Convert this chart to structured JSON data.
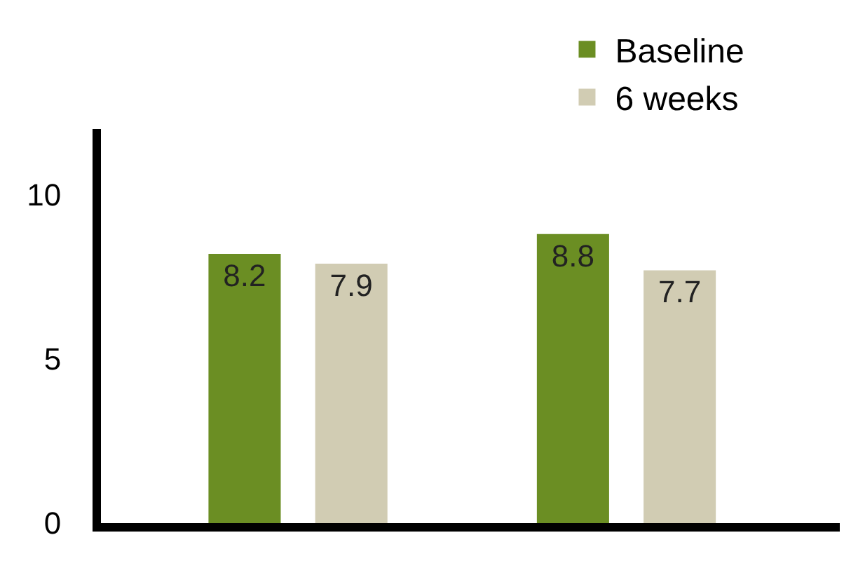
{
  "chart_data": {
    "type": "bar",
    "categories": [
      null,
      null
    ],
    "series": [
      {
        "name": "Baseline",
        "color": "#6b8e23",
        "values": [
          8.2,
          8.8
        ]
      },
      {
        "name": "6 weeks",
        "color": "#d1ccb3",
        "values": [
          7.9,
          7.7
        ]
      }
    ],
    "ylim": [
      0,
      12
    ],
    "yticks": [
      0,
      5,
      10
    ],
    "data_labels": true,
    "legend": "top right"
  }
}
